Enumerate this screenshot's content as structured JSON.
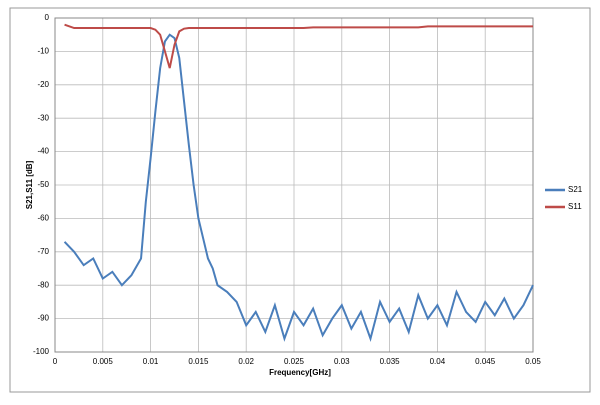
{
  "chart_data": {
    "type": "line",
    "x_label": "Frequency[GHz]",
    "y_label": "S21,S11 [dB]",
    "x": [
      0.001,
      0.002,
      0.003,
      0.004,
      0.005,
      0.006,
      0.007,
      0.008,
      0.009,
      0.0095,
      0.01,
      0.0105,
      0.011,
      0.0115,
      0.012,
      0.0125,
      0.013,
      0.0135,
      0.014,
      0.0145,
      0.015,
      0.0155,
      0.016,
      0.0165,
      0.017,
      0.018,
      0.019,
      0.02,
      0.021,
      0.022,
      0.023,
      0.024,
      0.025,
      0.026,
      0.027,
      0.028,
      0.029,
      0.03,
      0.031,
      0.032,
      0.033,
      0.034,
      0.035,
      0.036,
      0.037,
      0.038,
      0.039,
      0.04,
      0.041,
      0.042,
      0.043,
      0.044,
      0.045,
      0.046,
      0.047,
      0.048,
      0.049,
      0.05
    ],
    "series": [
      {
        "name": "S21",
        "color": "#4a7ebb",
        "values": [
          -67,
          -70,
          -74,
          -72,
          -78,
          -76,
          -80,
          -77,
          -72,
          -55,
          -42,
          -28,
          -15,
          -7,
          -5,
          -6,
          -12,
          -25,
          -38,
          -50,
          -60,
          -66,
          -72,
          -75,
          -80,
          -82,
          -85,
          -92,
          -88,
          -94,
          -86,
          -96,
          -88,
          -92,
          -87,
          -95,
          -90,
          -86,
          -93,
          -88,
          -96,
          -85,
          -91,
          -87,
          -94,
          -83,
          -90,
          -86,
          -92,
          -82,
          -88,
          -91,
          -85,
          -89,
          -84,
          -90,
          -86,
          -80
        ]
      },
      {
        "name": "S11",
        "color": "#be4b48",
        "values": [
          -2,
          -3,
          -3,
          -3,
          -3,
          -3,
          -3,
          -3,
          -3,
          -3,
          -3,
          -3.5,
          -5,
          -10,
          -15,
          -8,
          -4,
          -3.2,
          -3,
          -3,
          -3,
          -3,
          -3,
          -3,
          -3,
          -3,
          -3,
          -3,
          -3,
          -3,
          -3,
          -3,
          -3,
          -3,
          -2.8,
          -2.8,
          -2.8,
          -2.8,
          -2.8,
          -2.8,
          -2.8,
          -2.8,
          -2.8,
          -2.8,
          -2.8,
          -2.8,
          -2.5,
          -2.5,
          -2.5,
          -2.5,
          -2.5,
          -2.5,
          -2.5,
          -2.5,
          -2.5,
          -2.5,
          -2.5,
          -2.5
        ]
      }
    ],
    "xlim": [
      0,
      0.05
    ],
    "xticks": [
      0,
      0.005,
      0.01,
      0.015,
      0.02,
      0.025,
      0.03,
      0.035,
      0.04,
      0.045,
      0.05
    ],
    "ylim": [
      -100,
      0
    ],
    "yticks": [
      0,
      -10,
      -20,
      -30,
      -40,
      -50,
      -60,
      -70,
      -80,
      -90,
      -100
    ],
    "grid": true,
    "legend": "right"
  }
}
